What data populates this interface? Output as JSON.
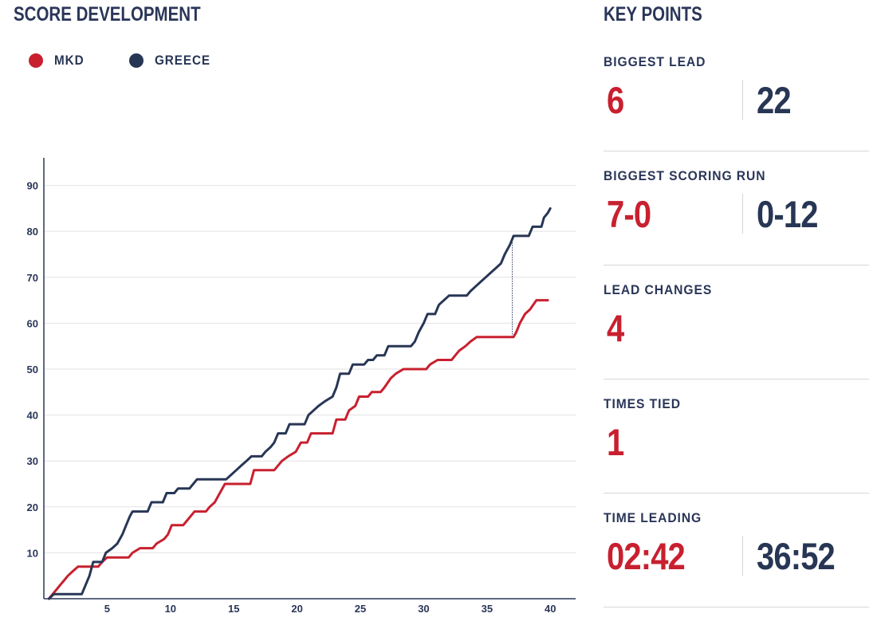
{
  "header": {
    "score_title": "SCORE DEVELOPMENT",
    "keypoints_title": "KEY POINTS"
  },
  "legend": {
    "home": {
      "label": "MKD",
      "color": "#c8202f"
    },
    "away": {
      "label": "GREECE",
      "color": "#283655"
    }
  },
  "key_points": [
    {
      "label": "BIGGEST LEAD",
      "home": "6",
      "away": "22"
    },
    {
      "label": "BIGGEST SCORING RUN",
      "home": "7-0",
      "away": "0-12"
    },
    {
      "label": "LEAD CHANGES",
      "home": "4"
    },
    {
      "label": "TIMES TIED",
      "home": "1"
    },
    {
      "label": "TIME LEADING",
      "home": "02:42",
      "away": "36:52"
    }
  ],
  "chart_data": {
    "type": "line",
    "title": "SCORE DEVELOPMENT",
    "xlabel": "",
    "ylabel": "",
    "xlim": [
      0,
      42
    ],
    "ylim": [
      0,
      96
    ],
    "xticks": [
      5,
      10,
      15,
      20,
      25,
      30,
      35,
      40
    ],
    "yticks": [
      10,
      20,
      30,
      40,
      50,
      60,
      70,
      80,
      90
    ],
    "grid": true,
    "legend_position": "top-left",
    "marker_line": {
      "x": 37.0,
      "from": 57,
      "to": 79
    },
    "series": [
      {
        "name": "MKD",
        "color": "#c8202f",
        "points": [
          [
            0.4,
            0
          ],
          [
            0.7,
            1
          ],
          [
            1.0,
            2
          ],
          [
            1.3,
            3
          ],
          [
            1.6,
            4
          ],
          [
            1.9,
            5
          ],
          [
            2.3,
            6
          ],
          [
            2.7,
            7
          ],
          [
            4.3,
            7
          ],
          [
            4.6,
            8
          ],
          [
            5.0,
            9
          ],
          [
            6.7,
            9
          ],
          [
            7.0,
            10
          ],
          [
            7.6,
            11
          ],
          [
            8.6,
            11
          ],
          [
            8.9,
            12
          ],
          [
            9.5,
            13
          ],
          [
            9.8,
            14
          ],
          [
            10.1,
            16
          ],
          [
            11.0,
            16
          ],
          [
            11.3,
            17
          ],
          [
            11.9,
            19
          ],
          [
            12.8,
            19
          ],
          [
            13.1,
            20
          ],
          [
            13.5,
            21
          ],
          [
            13.9,
            23
          ],
          [
            14.3,
            25
          ],
          [
            16.3,
            25
          ],
          [
            16.6,
            28
          ],
          [
            18.2,
            28
          ],
          [
            18.5,
            29
          ],
          [
            18.8,
            30
          ],
          [
            19.3,
            31
          ],
          [
            19.9,
            32
          ],
          [
            20.3,
            34
          ],
          [
            20.8,
            34
          ],
          [
            21.1,
            36
          ],
          [
            22.8,
            36
          ],
          [
            23.1,
            39
          ],
          [
            23.8,
            39
          ],
          [
            24.1,
            41
          ],
          [
            24.6,
            42
          ],
          [
            24.9,
            44
          ],
          [
            25.6,
            44
          ],
          [
            25.9,
            45
          ],
          [
            26.6,
            45
          ],
          [
            26.9,
            46
          ],
          [
            27.4,
            48
          ],
          [
            27.8,
            49
          ],
          [
            28.4,
            50
          ],
          [
            30.2,
            50
          ],
          [
            30.5,
            51
          ],
          [
            31.1,
            52
          ],
          [
            32.2,
            52
          ],
          [
            32.5,
            53
          ],
          [
            32.8,
            54
          ],
          [
            33.3,
            55
          ],
          [
            33.7,
            56
          ],
          [
            34.2,
            57
          ],
          [
            37.1,
            57
          ],
          [
            37.3,
            58
          ],
          [
            37.6,
            60
          ],
          [
            38.0,
            62
          ],
          [
            38.4,
            63
          ],
          [
            38.9,
            65
          ],
          [
            39.8,
            65
          ]
        ]
      },
      {
        "name": "GREECE",
        "color": "#283655",
        "points": [
          [
            0.4,
            0
          ],
          [
            0.8,
            1
          ],
          [
            3.0,
            1
          ],
          [
            3.3,
            3
          ],
          [
            3.6,
            5
          ],
          [
            3.9,
            8
          ],
          [
            4.6,
            8
          ],
          [
            4.9,
            10
          ],
          [
            5.4,
            11
          ],
          [
            5.8,
            12
          ],
          [
            6.2,
            14
          ],
          [
            6.5,
            16
          ],
          [
            6.8,
            18
          ],
          [
            7.0,
            19
          ],
          [
            8.2,
            19
          ],
          [
            8.5,
            21
          ],
          [
            9.4,
            21
          ],
          [
            9.7,
            23
          ],
          [
            10.3,
            23
          ],
          [
            10.6,
            24
          ],
          [
            11.5,
            24
          ],
          [
            11.8,
            25
          ],
          [
            12.1,
            26
          ],
          [
            14.4,
            26
          ],
          [
            14.8,
            27
          ],
          [
            15.2,
            28
          ],
          [
            15.6,
            29
          ],
          [
            16.0,
            30
          ],
          [
            16.4,
            31
          ],
          [
            17.2,
            31
          ],
          [
            17.5,
            32
          ],
          [
            17.9,
            33
          ],
          [
            18.2,
            34
          ],
          [
            18.5,
            36
          ],
          [
            19.1,
            36
          ],
          [
            19.4,
            38
          ],
          [
            20.6,
            38
          ],
          [
            20.9,
            40
          ],
          [
            21.3,
            41
          ],
          [
            21.7,
            42
          ],
          [
            22.2,
            43
          ],
          [
            22.8,
            44
          ],
          [
            23.1,
            46
          ],
          [
            23.4,
            49
          ],
          [
            24.1,
            49
          ],
          [
            24.4,
            51
          ],
          [
            25.3,
            51
          ],
          [
            25.6,
            52
          ],
          [
            26.0,
            52
          ],
          [
            26.3,
            53
          ],
          [
            26.9,
            53
          ],
          [
            27.2,
            55
          ],
          [
            29.0,
            55
          ],
          [
            29.3,
            56
          ],
          [
            29.6,
            58
          ],
          [
            30.0,
            60
          ],
          [
            30.3,
            62
          ],
          [
            30.9,
            62
          ],
          [
            31.2,
            64
          ],
          [
            31.6,
            65
          ],
          [
            32.0,
            66
          ],
          [
            33.4,
            66
          ],
          [
            33.7,
            67
          ],
          [
            34.1,
            68
          ],
          [
            34.5,
            69
          ],
          [
            34.9,
            70
          ],
          [
            35.3,
            71
          ],
          [
            35.7,
            72
          ],
          [
            36.1,
            73
          ],
          [
            36.4,
            75
          ],
          [
            36.8,
            77
          ],
          [
            37.1,
            79
          ],
          [
            38.3,
            79
          ],
          [
            38.6,
            81
          ],
          [
            39.3,
            81
          ],
          [
            39.5,
            83
          ],
          [
            39.8,
            84
          ],
          [
            40.0,
            85
          ]
        ]
      }
    ]
  }
}
